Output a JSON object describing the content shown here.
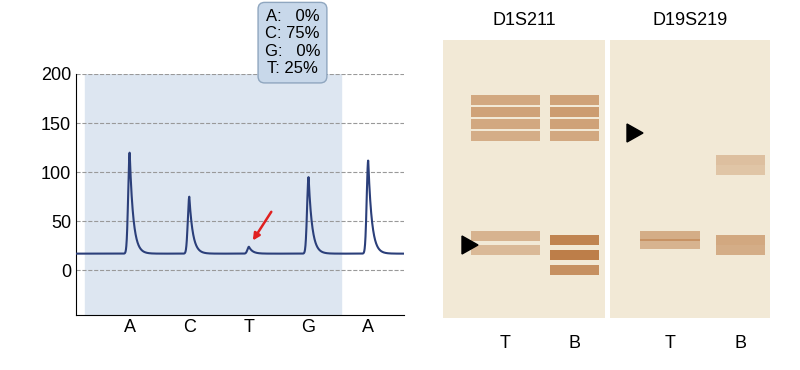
{
  "chart_data": {
    "type": "line",
    "categories": [
      "A",
      "C",
      "T",
      "G",
      "A"
    ],
    "values": [
      120,
      75,
      24,
      95,
      112
    ],
    "baseline": 17,
    "color": "#2b3f7a",
    "ylim": [
      -45,
      200
    ],
    "yticks": [
      0,
      50,
      100,
      150,
      200
    ],
    "grid": true,
    "annotations": [
      "A:   0%",
      "C: 75%",
      "G:   0%",
      "T: 25%"
    ]
  },
  "gels": [
    {
      "title": "D1S211",
      "lanes": [
        "T",
        "B"
      ]
    },
    {
      "title": "D19S219",
      "lanes": [
        "T",
        "B"
      ]
    }
  ]
}
